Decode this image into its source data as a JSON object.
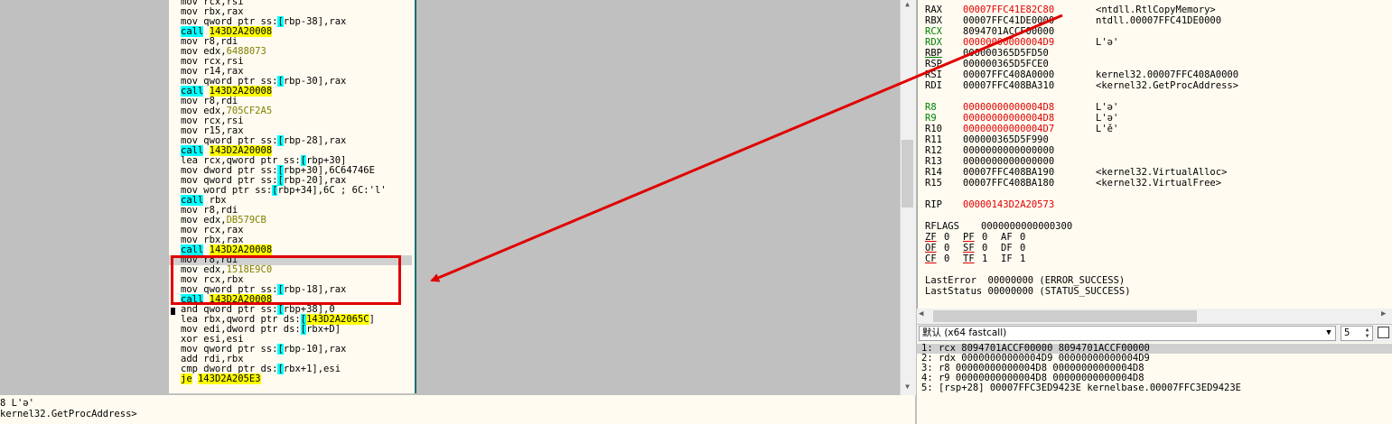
{
  "disassembly": [
    [
      {
        "t": "mov rcx,rsi"
      }
    ],
    [
      {
        "t": "mov rbx,rax"
      }
    ],
    [
      {
        "t": "mov qword ptr ss:"
      },
      {
        "t": "[",
        "c": "sq"
      },
      {
        "t": "rbp-38],rax"
      }
    ],
    [
      {
        "t": "call",
        "c": "br"
      },
      {
        "t": " "
      },
      {
        "t": "143D2A20008",
        "c": "lbl"
      }
    ],
    [
      {
        "t": "mov r8,rdi"
      }
    ],
    [
      {
        "t": "mov edx,"
      },
      {
        "t": "6488073",
        "c": "num"
      }
    ],
    [
      {
        "t": "mov rcx,rsi"
      }
    ],
    [
      {
        "t": "mov r14,rax"
      }
    ],
    [
      {
        "t": "mov qword ptr ss:"
      },
      {
        "t": "[",
        "c": "sq"
      },
      {
        "t": "rbp-30],rax"
      }
    ],
    [
      {
        "t": "call",
        "c": "br"
      },
      {
        "t": " "
      },
      {
        "t": "143D2A20008",
        "c": "lbl"
      }
    ],
    [
      {
        "t": "mov r8,rdi"
      }
    ],
    [
      {
        "t": "mov edx,"
      },
      {
        "t": "705CF2A5",
        "c": "num"
      }
    ],
    [
      {
        "t": "mov rcx,rsi"
      }
    ],
    [
      {
        "t": "mov r15,rax"
      }
    ],
    [
      {
        "t": "mov qword ptr ss:"
      },
      {
        "t": "[",
        "c": "sq"
      },
      {
        "t": "rbp-28],rax"
      }
    ],
    [
      {
        "t": "call",
        "c": "br"
      },
      {
        "t": " "
      },
      {
        "t": "143D2A20008",
        "c": "lbl"
      }
    ],
    [
      {
        "t": "lea rcx,qword ptr ss:"
      },
      {
        "t": "[",
        "c": "sq"
      },
      {
        "t": "rbp+30]"
      }
    ],
    [
      {
        "t": "mov dword ptr ss:"
      },
      {
        "t": "[",
        "c": "sq"
      },
      {
        "t": "rbp+30],6C64746E"
      }
    ],
    [
      {
        "t": "mov qword ptr ss:"
      },
      {
        "t": "[",
        "c": "sq"
      },
      {
        "t": "rbp-20],rax"
      }
    ],
    [
      {
        "t": "mov word ptr ss:"
      },
      {
        "t": "[",
        "c": "sq"
      },
      {
        "t": "rbp+34],6C ; 6C:'l'"
      }
    ],
    [
      {
        "t": "call",
        "c": "br"
      },
      {
        "t": " rbx"
      }
    ],
    [
      {
        "t": "mov r8,rdi"
      }
    ],
    [
      {
        "t": "mov edx,"
      },
      {
        "t": "DB579CB",
        "c": "num"
      }
    ],
    [
      {
        "t": "mov rcx,rax"
      }
    ],
    [
      {
        "t": "mov rbx,rax"
      }
    ],
    [
      {
        "t": "call",
        "c": "br"
      },
      {
        "t": " "
      },
      {
        "t": "143D2A20008",
        "c": "lbl"
      }
    ],
    [
      {
        "t": "mov r8,rdi"
      }
    ],
    [
      {
        "t": "mov edx,"
      },
      {
        "t": "1518E9C0",
        "c": "num"
      }
    ],
    [
      {
        "t": "mov rcx,rbx"
      }
    ],
    [
      {
        "t": "mov qword ptr ss:"
      },
      {
        "t": "[",
        "c": "sq"
      },
      {
        "t": "rbp-18],rax"
      }
    ],
    [
      {
        "t": "call",
        "c": "br"
      },
      {
        "t": " "
      },
      {
        "t": "143D2A20008",
        "c": "lbl"
      }
    ],
    [
      {
        "t": "and qword ptr ss:"
      },
      {
        "t": "[",
        "c": "sq"
      },
      {
        "t": "rbp+38],0"
      }
    ],
    [
      {
        "t": "lea rbx,qword ptr ds:"
      },
      {
        "t": "[",
        "c": "sq"
      },
      {
        "t": "143D2A2065C",
        "c": "lbl"
      },
      {
        "t": "]"
      }
    ],
    [
      {
        "t": "mov edi,dword ptr ds:"
      },
      {
        "t": "[",
        "c": "sq"
      },
      {
        "t": "rbx+D]"
      }
    ],
    [
      {
        "t": "xor esi,esi"
      }
    ],
    [
      {
        "t": "mov qword ptr ss:"
      },
      {
        "t": "[",
        "c": "sq"
      },
      {
        "t": "rbp-10],rax"
      }
    ],
    [
      {
        "t": "add rdi,rbx"
      }
    ],
    [
      {
        "t": "cmp dword ptr ds:"
      },
      {
        "t": "[",
        "c": "sq"
      },
      {
        "t": "rbx+1],esi"
      }
    ],
    [
      {
        "t": "je",
        "c": "lbl"
      },
      {
        "t": " "
      },
      {
        "t": "143D2A205E3",
        "c": "lbl"
      }
    ]
  ],
  "info": {
    "line1": "8 L'ə'",
    "line2": "kernel32.GetProcAddress>"
  },
  "registers": [
    {
      "name": "RAX",
      "value": "00007FFC41E82C80",
      "comment": "<ntdll.RtlCopyMemory>",
      "changed": true
    },
    {
      "name": "RBX",
      "value": "00007FFC41DE0000",
      "comment": "ntdll.00007FFC41DE0000",
      "changed": false
    },
    {
      "name": "RCX",
      "value": "8094701ACCF00000",
      "comment": "",
      "changed": false
    },
    {
      "name": "RDX",
      "value": "00000000000004D9",
      "comment": "L'ə'",
      "changed": true
    },
    {
      "name": "RBP",
      "value": "000000365D5FD50",
      "comment": "",
      "changed": false
    },
    {
      "name": "RSP",
      "value": "000000365D5FCE0",
      "comment": "",
      "changed": false
    },
    {
      "name": "RSI",
      "value": "00007FFC408A0000",
      "comment": "kernel32.00007FFC408A0000",
      "changed": false
    },
    {
      "name": "RDI",
      "value": "00007FFC408BA310",
      "comment": "<kernel32.GetProcAddress>",
      "changed": false
    },
    {
      "name": "R8",
      "value": "00000000000004D8",
      "comment": "L'ə'",
      "changed": true
    },
    {
      "name": "R9",
      "value": "00000000000004D8",
      "comment": "L'ə'",
      "changed": true
    },
    {
      "name": "R10",
      "value": "00000000000004D7",
      "comment": "L'ě'",
      "changed": true
    },
    {
      "name": "R11",
      "value": "000000365D5F990",
      "comment": "",
      "changed": false
    },
    {
      "name": "R12",
      "value": "0000000000000000",
      "comment": "",
      "changed": false
    },
    {
      "name": "R13",
      "value": "0000000000000000",
      "comment": "",
      "changed": false
    },
    {
      "name": "R14",
      "value": "00007FFC408BA190",
      "comment": "<kernel32.VirtualAlloc>",
      "changed": false
    },
    {
      "name": "R15",
      "value": "00007FFC408BA180",
      "comment": "<kernel32.VirtualFree>",
      "changed": false
    }
  ],
  "rip": {
    "name": "RIP",
    "value": "00000143D2A20573"
  },
  "rflags": {
    "name": "RFLAGS",
    "value": "0000000000000300"
  },
  "flags": [
    [
      {
        "n": "ZF",
        "v": "0"
      },
      {
        "n": "PF",
        "v": "0"
      },
      {
        "n": "AF",
        "v": "0"
      }
    ],
    [
      {
        "n": "OF",
        "v": "0"
      },
      {
        "n": "SF",
        "v": "0"
      },
      {
        "n": "DF",
        "v": "0"
      }
    ],
    [
      {
        "n": "CF",
        "v": "0"
      },
      {
        "n": "TF",
        "v": "1"
      },
      {
        "n": "IF",
        "v": "1"
      }
    ]
  ],
  "last_error": "LastError  00000000 (ERROR_SUCCESS)",
  "last_status": "LastStatus 00000000 (STATUS_SUCCESS)",
  "callconv": {
    "label": "默认 (x64 fastcall)",
    "count": "5"
  },
  "args": [
    "1: rcx 8094701ACCF00000 8094701ACCF00000",
    "2: rdx 00000000000004D9 00000000000004D9",
    "3: r8 00000000000004D8 00000000000004D8",
    "4: r9 00000000000004D8 00000000000004D8",
    "5: [rsp+28] 00007FFC3ED9423E kernelbase.00007FFC3ED9423E"
  ],
  "colors": {
    "changed": "#e00000",
    "annotation": "#e00000",
    "teal_border": "#0f6e6e"
  }
}
